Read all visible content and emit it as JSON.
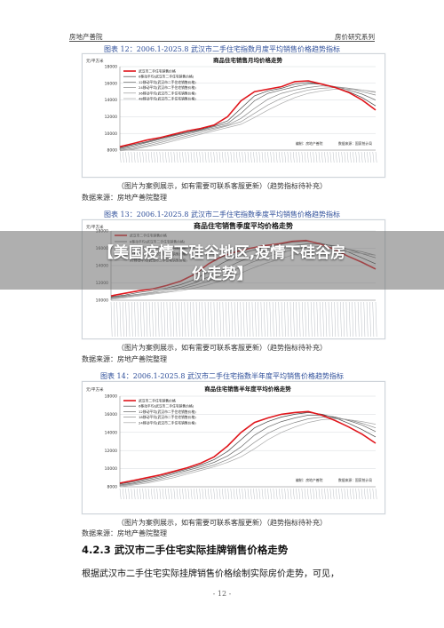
{
  "header": {
    "left": "房地产善院",
    "right": "房价研究系列"
  },
  "figures": [
    {
      "caption": "图表 12：2006.1-2025.8 武汉市二手住宅指数月度平均销售价格趋势指标",
      "note": "（图片为案例展示，如有需要可联系客服更新）（趋势指标待补充）",
      "source": "数据来源：房地产善院整理"
    },
    {
      "caption": "图表 13：2006.1-2025.8 武汉市二手住宅指数季度平均销售价格趋势指标",
      "note": "（图片为案例展示，如有需要可联系客服更新）（趋势指标待补充）",
      "source": "数据来源：房地产善院整理"
    },
    {
      "caption": "图表 14：2006.1-2025.8 武汉市二手住宅指数半年度平均销售价格趋势指标",
      "note": "（图片为案例展示，如有需要可联系客服更新）（趋势指标待补充）",
      "source": "数据来源：房地产善院整理"
    }
  ],
  "overlay": {
    "line1": "【美国疫情下硅谷地区,疫情下硅谷房",
    "line2": "价走势】"
  },
  "section": {
    "title": "4.2.3 武汉市二手住宅实际挂牌销售价格走势"
  },
  "body": {
    "text": "根据武汉市二手住宅实际挂牌销售价格绘制实际房价走势，可见，"
  },
  "page_number": "- 12 -",
  "chart_data": [
    {
      "type": "line",
      "title": "商品住宅销售月均价格走势",
      "ylabel": "元/平方米",
      "ylim": [
        8000,
        18000
      ],
      "yticks": [
        8000,
        10000,
        12000,
        14000,
        16000,
        18000
      ],
      "grid": true,
      "legend": "top-left",
      "x": [
        0,
        1,
        2,
        3,
        4,
        5,
        6,
        7,
        8,
        9,
        10,
        11,
        12,
        13,
        14,
        15,
        16,
        17,
        18,
        19
      ],
      "series": [
        {
          "name": "武汉市二手住宅销售价格",
          "color": "#e0161c",
          "values": [
            8400,
            8800,
            9200,
            9500,
            9900,
            10300,
            10600,
            11000,
            12000,
            13900,
            15000,
            15300,
            15600,
            16200,
            16300,
            15900,
            15500,
            14900,
            14000,
            12800
          ]
        },
        {
          "name": "6移动平均(武汉市二手住宅销售价格)",
          "color": "#444444",
          "values": [
            8300,
            8650,
            9000,
            9400,
            9800,
            10150,
            10500,
            10900,
            11500,
            13000,
            14500,
            15100,
            15400,
            15900,
            16100,
            15900,
            15500,
            15000,
            14300,
            13300
          ]
        },
        {
          "name": "12移动平均(武汉市二手住宅销售价格)",
          "color": "#666666",
          "values": [
            8200,
            8500,
            8900,
            9300,
            9700,
            10050,
            10400,
            10800,
            11200,
            12400,
            13900,
            14800,
            15200,
            15600,
            15900,
            15900,
            15600,
            15200,
            14700,
            14000
          ]
        },
        {
          "name": "24移动平均(武汉市二手住宅销售价格)",
          "color": "#888888",
          "values": [
            8100,
            8350,
            8700,
            9100,
            9500,
            9900,
            10300,
            10650,
            11000,
            11800,
            13000,
            14100,
            14800,
            15200,
            15500,
            15700,
            15600,
            15400,
            15000,
            14600
          ]
        },
        {
          "name": "36移动平均(武汉市二手住宅销售价格)",
          "color": "#999999",
          "values": [
            8000,
            8200,
            8500,
            8900,
            9300,
            9700,
            10100,
            10500,
            10900,
            11400,
            12400,
            13400,
            14200,
            14800,
            15200,
            15400,
            15500,
            15400,
            15200,
            14900
          ]
        },
        {
          "name": "48移动平均(武汉市二手住宅销售价格)",
          "color": "#aaaaaa",
          "values": [
            7900,
            8100,
            8400,
            8700,
            9100,
            9500,
            9900,
            10300,
            10700,
            11100,
            11900,
            12800,
            13600,
            14300,
            14800,
            15100,
            15300,
            15300,
            15200,
            15000
          ]
        }
      ],
      "footer_left": "编制：房地产善院",
      "footer_right": "数据来源：国家统计局"
    },
    {
      "type": "line",
      "title": "商品住宅销售季度平均价格走势",
      "ylabel": "元/平方米",
      "ylim": [
        10000,
        18000
      ],
      "yticks": [
        10000,
        12000,
        14000,
        16000,
        18000
      ],
      "grid": true,
      "legend": "top-left",
      "x": [
        0,
        1,
        2,
        3,
        4,
        5,
        6,
        7,
        8,
        9,
        10,
        11,
        12,
        13,
        14,
        15,
        16,
        17,
        18,
        19
      ],
      "series": [
        {
          "name": "武汉市二手住宅销售价格",
          "color": "#e0161c",
          "values": [
            10500,
            10800,
            11100,
            11300,
            11700,
            12200,
            13000,
            14200,
            15100,
            15600,
            16000,
            16300,
            16500,
            16800,
            16900,
            16500,
            15900,
            15100,
            14400,
            13600
          ]
        },
        {
          "name": "8移动平均(武汉市二手住宅销售价格)",
          "color": "#444444",
          "values": [
            10400,
            10600,
            10900,
            11100,
            11400,
            11800,
            12400,
            13300,
            14300,
            15100,
            15700,
            16100,
            16400,
            16700,
            16800,
            16600,
            16200,
            15600,
            14900,
            14200
          ]
        },
        {
          "name": "16移动平均(武汉市二手住宅销售价格)",
          "color": "#666666",
          "values": [
            10300,
            10500,
            10700,
            10900,
            11200,
            11500,
            12000,
            12700,
            13500,
            14300,
            15000,
            15600,
            16000,
            16300,
            16500,
            16500,
            16300,
            15900,
            15400,
            14900
          ]
        },
        {
          "name": "24移动平均(武汉市二手住宅销售价格)",
          "color": "#888888",
          "values": [
            10200,
            10400,
            10600,
            10800,
            11000,
            11300,
            11700,
            12200,
            12900,
            13600,
            14300,
            14900,
            15400,
            15800,
            16100,
            16200,
            16100,
            15900,
            15600,
            15200
          ]
        },
        {
          "name": "32移动平均(武汉市二手住宅销售价格)",
          "color": "#aaaaaa",
          "values": [
            10100,
            10300,
            10500,
            10700,
            10900,
            11100,
            11400,
            11800,
            12300,
            12900,
            13600,
            14200,
            14700,
            15200,
            15500,
            15700,
            15700,
            15600,
            15400,
            15200
          ]
        }
      ]
    },
    {
      "type": "line",
      "title": "商品住宅销售半年度平均价格走势",
      "ylabel": "元/平方米",
      "ylim": [
        8000,
        18000
      ],
      "yticks": [
        8000,
        10000,
        12000,
        14000,
        16000,
        18000
      ],
      "grid": true,
      "legend": "top-left",
      "x": [
        0,
        1,
        2,
        3,
        4,
        5,
        6,
        7,
        8,
        9,
        10,
        11,
        12,
        13,
        14,
        15,
        16,
        17,
        18,
        19
      ],
      "series": [
        {
          "name": "武汉市二手住宅销售价格",
          "color": "#e0161c",
          "values": [
            8400,
            8700,
            9000,
            9300,
            9700,
            10100,
            10600,
            11300,
            12500,
            14000,
            15100,
            15600,
            16000,
            16200,
            16300,
            15900,
            15300,
            14600,
            13800,
            12800
          ]
        },
        {
          "name": "6移动平均(武汉市二手住宅销售价格)",
          "color": "#444444",
          "values": [
            8300,
            8550,
            8850,
            9150,
            9550,
            9950,
            10400,
            11000,
            11900,
            13200,
            14500,
            15200,
            15700,
            16000,
            16200,
            16000,
            15600,
            15000,
            14300,
            13500
          ]
        },
        {
          "name": "12移动平均(武汉市二手住宅销售价格)",
          "color": "#666666",
          "values": [
            8200,
            8400,
            8700,
            9000,
            9400,
            9800,
            10200,
            10700,
            11400,
            12400,
            13700,
            14600,
            15200,
            15600,
            15900,
            15900,
            15700,
            15300,
            14800,
            14100
          ]
        },
        {
          "name": "18移动平均(武汉市二手住宅销售价格)",
          "color": "#888888",
          "values": [
            8100,
            8300,
            8550,
            8850,
            9200,
            9600,
            10000,
            10400,
            11000,
            11800,
            12900,
            13900,
            14600,
            15100,
            15500,
            15700,
            15600,
            15400,
            15000,
            14500
          ]
        },
        {
          "name": "24移动平均(武汉市二手住宅销售价格)",
          "color": "#aaaaaa",
          "values": [
            8000,
            8200,
            8400,
            8700,
            9000,
            9400,
            9800,
            10200,
            10700,
            11300,
            12200,
            13200,
            14000,
            14600,
            15100,
            15400,
            15500,
            15400,
            15200,
            14900
          ]
        }
      ],
      "footer_left": "编制：房地产善院",
      "footer_right": "数据来源：国家统计局"
    }
  ]
}
